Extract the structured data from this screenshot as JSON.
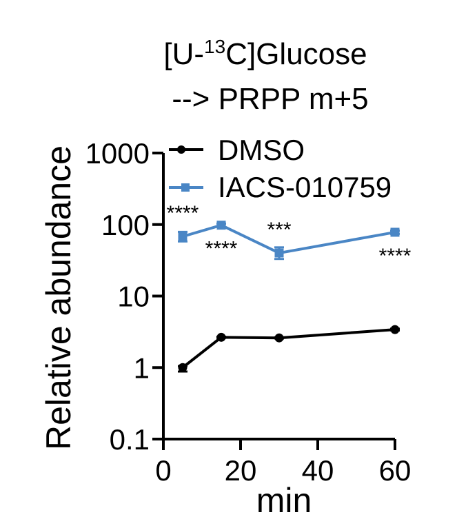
{
  "chart_data": {
    "type": "line",
    "title_line1_prefix": "[U-",
    "title_line1_superscript": "13",
    "title_line1_suffix": "C]Glucose",
    "title_line2": "--> PRPP m+5",
    "xlabel": "min",
    "ylabel": "Relative abundance",
    "yscale": "log",
    "ylim": [
      0.1,
      1000
    ],
    "xlim": [
      0,
      60
    ],
    "xticks": [
      0,
      20,
      40,
      60
    ],
    "xtick_labels": [
      "0",
      "20",
      "40",
      "60"
    ],
    "yticks": [
      0.1,
      1,
      10,
      100,
      1000
    ],
    "ytick_labels": [
      "0.1",
      "1",
      "10",
      "100",
      "1000"
    ],
    "legend_position": "top",
    "series": [
      {
        "name": "DMSO",
        "color": "#000000",
        "marker": "circle",
        "x": [
          5,
          15,
          30,
          60
        ],
        "values": [
          1.0,
          2.65,
          2.6,
          3.4
        ],
        "err_low": [
          0.88,
          2.6,
          2.55,
          3.3
        ],
        "err_high": [
          1.05,
          2.7,
          2.65,
          3.5
        ]
      },
      {
        "name": "IACS-010759",
        "color": "#4A86C5",
        "marker": "square",
        "x": [
          5,
          15,
          30,
          60
        ],
        "values": [
          68,
          98,
          40,
          78
        ],
        "err_low": [
          58,
          93,
          33,
          74
        ],
        "err_high": [
          79,
          103,
          48,
          82
        ]
      }
    ],
    "annotations": [
      {
        "x": 5,
        "y": 68,
        "text": "****",
        "placement": "above"
      },
      {
        "x": 15,
        "y": 98,
        "text": "****",
        "placement": "below"
      },
      {
        "x": 30,
        "y": 40,
        "text": "***",
        "placement": "above"
      },
      {
        "x": 60,
        "y": 78,
        "text": "****",
        "placement": "below"
      }
    ]
  }
}
